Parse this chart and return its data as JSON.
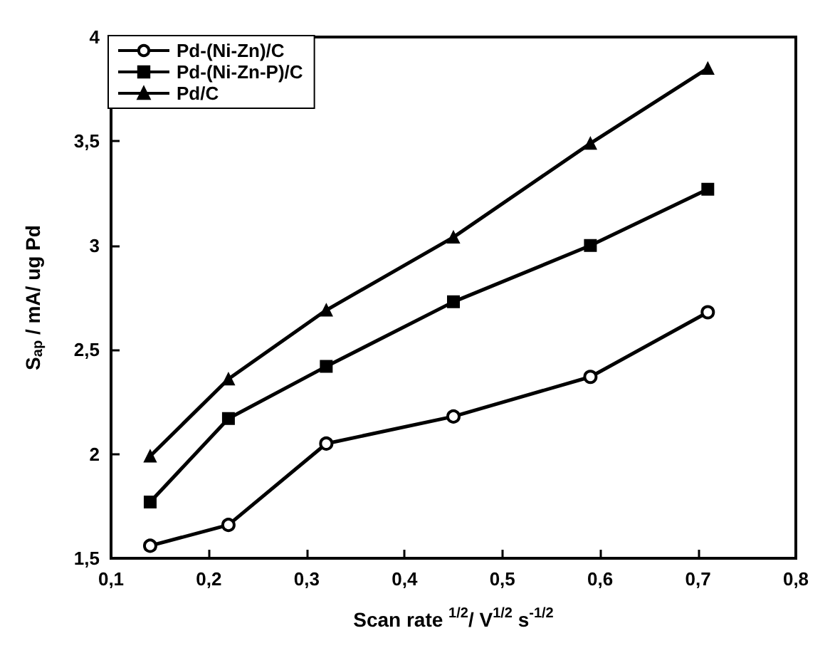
{
  "chart_data": {
    "type": "line",
    "xlabel": "Scan rate $^{1/2}$/ V$^{1/2}$ s$^{-1/2}$",
    "ylabel": "S$_{ap}$ / mA/ ug Pd",
    "xlim": [
      0.1,
      0.8
    ],
    "xticks": [
      {
        "value": 0.1,
        "label": "0,1"
      },
      {
        "value": 0.2,
        "label": "0,2"
      },
      {
        "value": 0.3,
        "label": "0,3"
      },
      {
        "value": 0.4,
        "label": "0,4"
      },
      {
        "value": 0.5,
        "label": "0,5"
      },
      {
        "value": 0.6,
        "label": "0,6"
      },
      {
        "value": 0.7,
        "label": "0,7"
      },
      {
        "value": 0.8,
        "label": "0,8"
      }
    ],
    "ylim": [
      1.5,
      4
    ],
    "yticks": [
      {
        "value": 1.5,
        "label": "1,5"
      },
      2,
      {
        "value": 2.5,
        "label": "2,5"
      },
      3,
      {
        "value": 3.5,
        "label": "3,5"
      },
      4
    ],
    "x": [
      0.14,
      0.22,
      0.32,
      0.45,
      0.59,
      0.71
    ],
    "legend": "top left",
    "grid": false,
    "line_style": "solid",
    "series": [
      {
        "name": "Pd-(Ni-Zn)/C",
        "color": "#000000",
        "marker": "circle",
        "values": [
          1.56,
          1.66,
          2.05,
          2.18,
          2.37,
          2.68
        ]
      },
      {
        "name": "Pd-(Ni-Zn-P)/C",
        "color": "#000000",
        "marker": "square",
        "values": [
          1.77,
          2.17,
          2.42,
          2.73,
          3.0,
          3.27
        ]
      },
      {
        "name": "Pd/C",
        "color": "#000000",
        "marker": "triangle",
        "values": [
          1.99,
          2.36,
          2.69,
          3.04,
          3.49,
          3.85
        ]
      }
    ]
  }
}
